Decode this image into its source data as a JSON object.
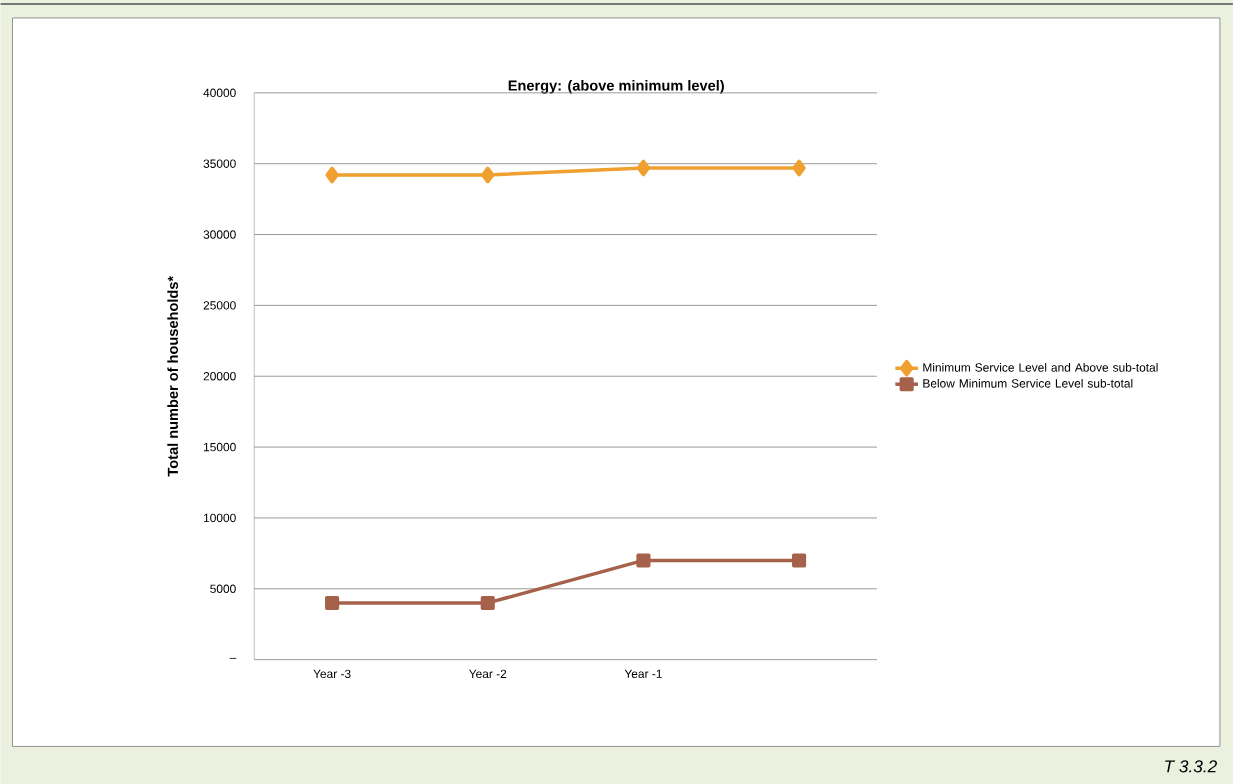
{
  "chart_data": {
    "type": "line",
    "title": "Energy: (above minimum level)",
    "ylabel": "Total number of households*",
    "categories": [
      "Year -3",
      "Year -2",
      "Year -1",
      null
    ],
    "series": [
      {
        "name": "Minimum Service Level and Above sub-total",
        "color": "#f0a030",
        "marker": "diamond",
        "values": [
          34200,
          34200,
          34700,
          34700
        ]
      },
      {
        "name": "Below Minimum Service Level sub-total",
        "color": "#a5614a",
        "marker": "square",
        "values": [
          4000,
          4000,
          7000,
          7000
        ]
      }
    ],
    "ylim": [
      0,
      40000
    ],
    "yticks": [
      {
        "value": 0,
        "label": "–"
      },
      5000,
      10000,
      15000,
      20000,
      25000,
      30000,
      35000,
      40000
    ],
    "grid": "y",
    "legend": "right",
    "line_style": "solid",
    "annotations": [
      "T 3.3.2"
    ]
  }
}
